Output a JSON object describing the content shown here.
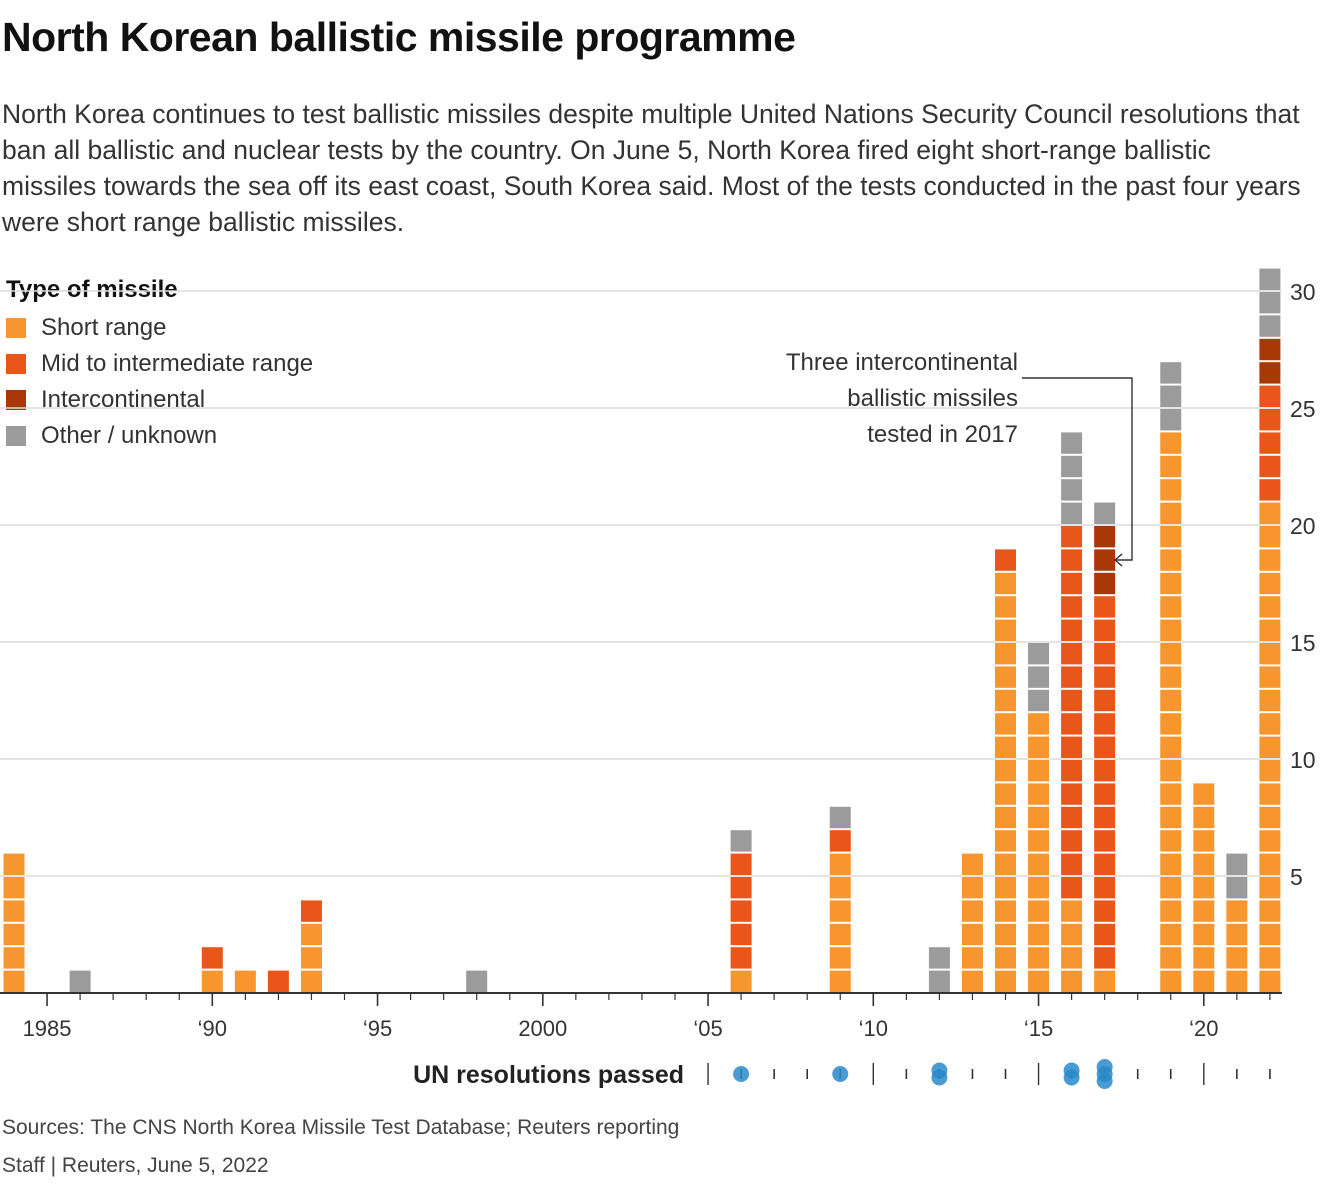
{
  "title": "North Korean ballistic missile programme",
  "subtitle": "North Korea continues to test ballistic missiles despite multiple United Nations Security Council resolutions that ban all ballistic and nuclear tests by the country. On June 5, North Korea fired eight short-range ballistic missiles towards the sea off its east coast, South Korea said. Most of the tests conducted in the past four years were short range ballistic missiles.",
  "legend": {
    "title": "Type of missile",
    "items": [
      {
        "label": "Short range",
        "color": "#f7962e"
      },
      {
        "label": "Mid to intermediate range",
        "color": "#e8561a"
      },
      {
        "label": "Intercontinental",
        "color": "#a83808"
      },
      {
        "label": "Other / unknown",
        "color": "#9b9b9b"
      }
    ]
  },
  "annotation": {
    "lines": [
      "Three intercontinental",
      "ballistic missiles",
      "tested in 2017"
    ]
  },
  "un_label": "UN resolutions passed",
  "footer": {
    "sources": "Sources: The CNS North Korea Missile Test Database; Reuters reporting",
    "credit": "Staff  |  Reuters, June 5, 2022"
  },
  "chart_data": {
    "type": "bar",
    "stacked": true,
    "x": [
      1984,
      1985,
      1986,
      1987,
      1988,
      1989,
      1990,
      1991,
      1992,
      1993,
      1994,
      1995,
      1996,
      1997,
      1998,
      1999,
      2000,
      2001,
      2002,
      2003,
      2004,
      2005,
      2006,
      2007,
      2008,
      2009,
      2010,
      2011,
      2012,
      2013,
      2014,
      2015,
      2016,
      2017,
      2018,
      2019,
      2020,
      2021,
      2022
    ],
    "x_tick_labels": [
      {
        "year": 1985,
        "label": "1985"
      },
      {
        "year": 1990,
        "label": "‘90"
      },
      {
        "year": 1995,
        "label": "‘95"
      },
      {
        "year": 2000,
        "label": "2000"
      },
      {
        "year": 2005,
        "label": "‘05"
      },
      {
        "year": 2010,
        "label": "‘10"
      },
      {
        "year": 2015,
        "label": "‘15"
      },
      {
        "year": 2020,
        "label": "‘20"
      }
    ],
    "y_ticks": [
      5,
      10,
      15,
      20,
      25,
      30
    ],
    "ylim": [
      0,
      31
    ],
    "grid": true,
    "y_axis_side": "right",
    "series": [
      {
        "name": "Short range",
        "color": "#f7962e",
        "values": [
          6,
          0,
          0,
          0,
          0,
          0,
          1,
          1,
          0,
          3,
          0,
          0,
          0,
          0,
          0,
          0,
          0,
          0,
          0,
          0,
          0,
          0,
          1,
          0,
          0,
          6,
          0,
          0,
          0,
          6,
          18,
          12,
          4,
          1,
          0,
          24,
          9,
          4,
          21
        ]
      },
      {
        "name": "Mid to intermediate range",
        "color": "#e8561a",
        "values": [
          0,
          0,
          0,
          0,
          0,
          0,
          1,
          0,
          1,
          1,
          0,
          0,
          0,
          0,
          0,
          0,
          0,
          0,
          0,
          0,
          0,
          0,
          5,
          0,
          0,
          1,
          0,
          0,
          0,
          0,
          1,
          0,
          16,
          16,
          0,
          0,
          0,
          0,
          5
        ]
      },
      {
        "name": "Intercontinental",
        "color": "#a83808",
        "values": [
          0,
          0,
          0,
          0,
          0,
          0,
          0,
          0,
          0,
          0,
          0,
          0,
          0,
          0,
          0,
          0,
          0,
          0,
          0,
          0,
          0,
          0,
          0,
          0,
          0,
          0,
          0,
          0,
          0,
          0,
          0,
          0,
          0,
          3,
          0,
          0,
          0,
          0,
          2
        ]
      },
      {
        "name": "Other / unknown",
        "color": "#9b9b9b",
        "values": [
          0,
          0,
          1,
          0,
          0,
          0,
          0,
          0,
          0,
          0,
          0,
          0,
          0,
          0,
          1,
          0,
          0,
          0,
          0,
          0,
          0,
          0,
          1,
          0,
          0,
          1,
          0,
          0,
          2,
          0,
          0,
          3,
          4,
          1,
          0,
          3,
          0,
          2,
          3
        ]
      }
    ],
    "un_resolutions": [
      {
        "year": 2006,
        "count": 1
      },
      {
        "year": 2009,
        "count": 1
      },
      {
        "year": 2012,
        "count": 2
      },
      {
        "year": 2016,
        "count": 2
      },
      {
        "year": 2017,
        "count": 3
      }
    ]
  }
}
